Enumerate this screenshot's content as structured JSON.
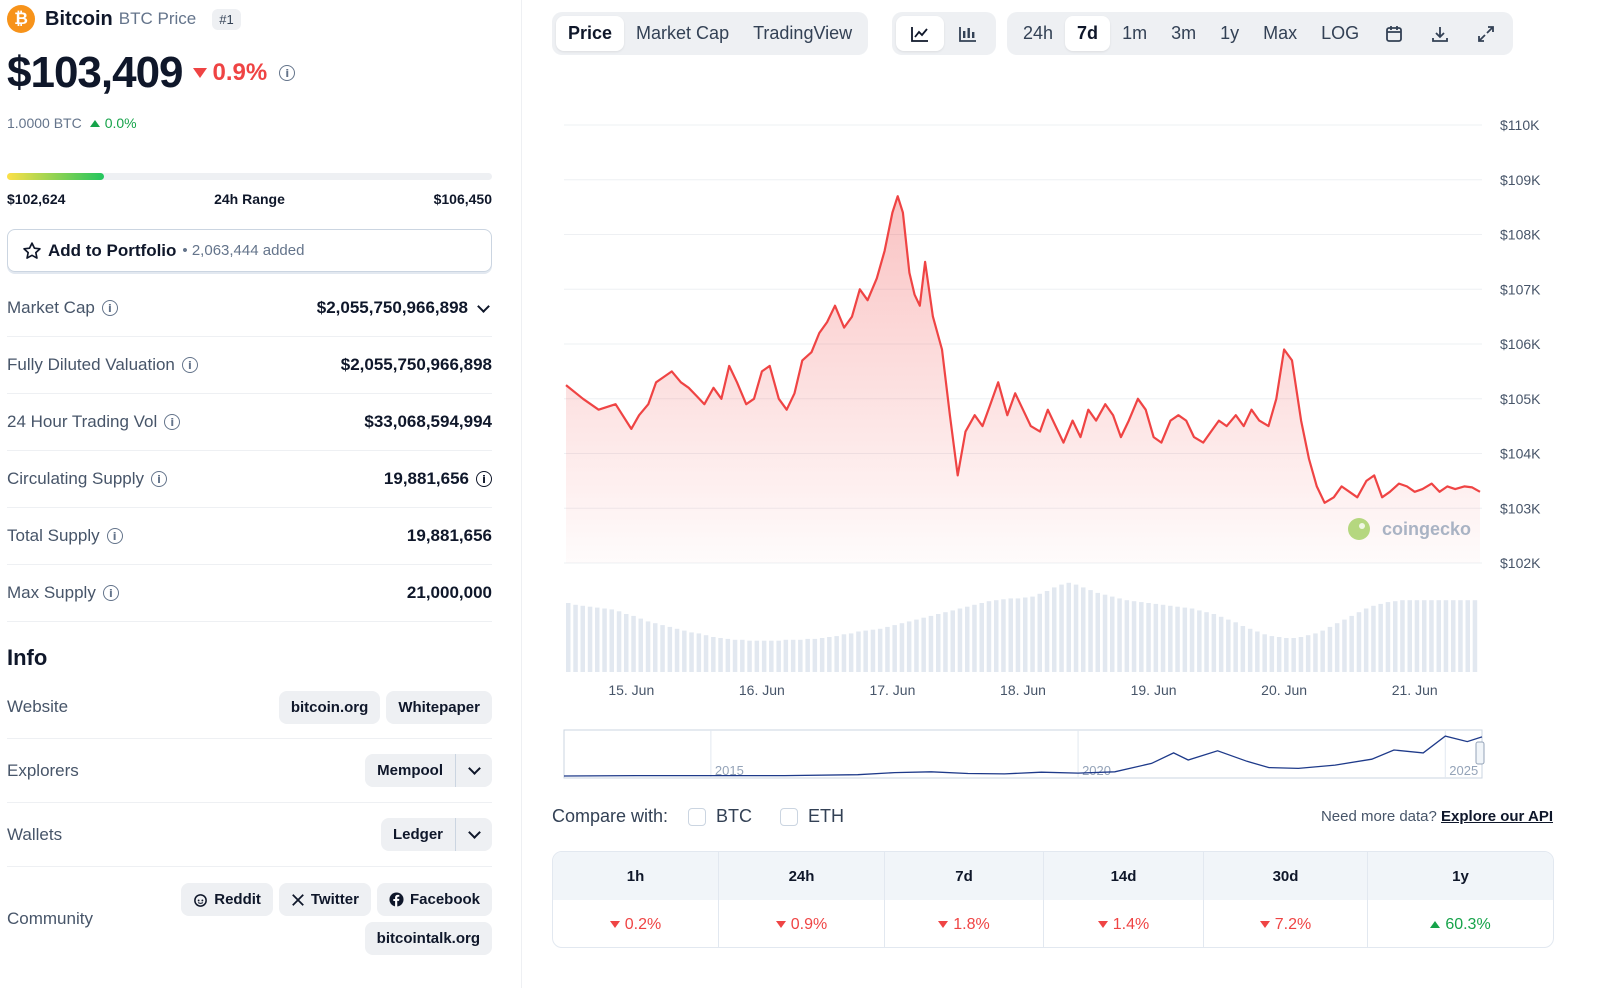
{
  "coin": {
    "logo_glyph": "₿",
    "name": "Bitcoin",
    "subtitle": "BTC Price",
    "rank": "#1",
    "price": "$103,409",
    "change": "0.9%",
    "btc_value": "1.0000 BTC",
    "btc_change": "0.0%"
  },
  "range": {
    "low": "$102,624",
    "label": "24h Range",
    "high": "$106,450",
    "fill_fraction": 0.2
  },
  "portfolio": {
    "label": "Add to Portfolio",
    "count": "• 2,063,444 added"
  },
  "stats": [
    {
      "key": "Market Cap",
      "value": "$2,055,750,966,898"
    },
    {
      "key": "Fully Diluted Valuation",
      "value": "$2,055,750,966,898"
    },
    {
      "key": "24 Hour Trading Vol",
      "value": "$33,068,594,994"
    },
    {
      "key": "Circulating Supply",
      "value": "19,881,656"
    },
    {
      "key": "Total Supply",
      "value": "19,881,656"
    },
    {
      "key": "Max Supply",
      "value": "21,000,000"
    }
  ],
  "info": {
    "title": "Info",
    "website_label": "Website",
    "website_links": [
      "bitcoin.org",
      "Whitepaper"
    ],
    "explorers_label": "Explorers",
    "explorer": "Mempool",
    "wallets_label": "Wallets",
    "wallet": "Ledger",
    "community_label": "Community",
    "community_links": [
      "Reddit",
      "Twitter",
      "Facebook",
      "bitcointalk.org"
    ]
  },
  "chart_tabs": [
    "Price",
    "Market Cap",
    "TradingView"
  ],
  "chart_tab_active": "Price",
  "time_tabs": [
    "24h",
    "7d",
    "1m",
    "3m",
    "1y",
    "Max",
    "LOG"
  ],
  "time_tab_active": "7d",
  "icons": [
    "line-chart-icon",
    "candlestick-icon",
    "calendar-icon",
    "download-icon",
    "expand-icon",
    "star-icon",
    "info-icon",
    "chevron-down-icon",
    "reddit-icon",
    "x-twitter-icon",
    "facebook-icon"
  ],
  "colors": {
    "accent": "#ef4444",
    "up": "#16a34a",
    "btc": "#f7931a"
  },
  "watermark": "coingecko",
  "compare": {
    "label": "Compare with:",
    "options": [
      "BTC",
      "ETH"
    ]
  },
  "api": {
    "text": "Need more data?",
    "link": "Explore our API"
  },
  "performance": {
    "periods": [
      "1h",
      "24h",
      "7d",
      "14d",
      "30d",
      "1y"
    ],
    "values": [
      {
        "dir": "down",
        "value": "0.2%"
      },
      {
        "dir": "down",
        "value": "0.9%"
      },
      {
        "dir": "down",
        "value": "1.8%"
      },
      {
        "dir": "down",
        "value": "1.4%"
      },
      {
        "dir": "down",
        "value": "7.2%"
      },
      {
        "dir": "up",
        "value": "60.3%"
      }
    ]
  },
  "chart_data": {
    "type": "area",
    "title": "",
    "xlabel": "",
    "ylabel": "",
    "y_tick_labels": [
      "$110K",
      "$109K",
      "$108K",
      "$107K",
      "$106K",
      "$105K",
      "$104K",
      "$103K",
      "$102K"
    ],
    "y_ticks": [
      110000,
      109000,
      108000,
      107000,
      106000,
      105000,
      104000,
      103000,
      102000
    ],
    "ylim": [
      102000,
      110000
    ],
    "x_tick_labels": [
      "15. Jun",
      "16. Jun",
      "17. Jun",
      "18. Jun",
      "19. Jun",
      "20. Jun",
      "21. Jun"
    ],
    "x_ticks": [
      0.5,
      1.5,
      2.5,
      3.5,
      4.5,
      5.5,
      6.5
    ],
    "xlim": [
      0,
      7
    ],
    "series": [
      {
        "x": [
          0,
          0.13,
          0.25,
          0.38,
          0.5,
          0.56,
          0.63,
          0.69,
          0.75,
          0.81,
          0.88,
          0.94,
          1.0,
          1.06,
          1.13,
          1.19,
          1.25,
          1.31,
          1.38,
          1.44,
          1.5,
          1.56,
          1.63,
          1.69,
          1.75,
          1.81,
          1.88,
          1.94,
          2.0,
          2.06,
          2.13,
          2.19,
          2.25,
          2.31,
          2.38,
          2.44,
          2.5,
          2.54,
          2.58,
          2.63,
          2.67,
          2.71,
          2.75,
          2.81,
          2.88,
          2.94,
          3.0,
          3.06,
          3.13,
          3.19,
          3.25,
          3.31,
          3.38,
          3.44,
          3.5,
          3.56,
          3.63,
          3.69,
          3.75,
          3.81,
          3.88,
          3.94,
          4.0,
          4.06,
          4.13,
          4.19,
          4.25,
          4.31,
          4.38,
          4.44,
          4.5,
          4.56,
          4.63,
          4.69,
          4.75,
          4.81,
          4.88,
          4.94,
          5.0,
          5.06,
          5.13,
          5.19,
          5.25,
          5.31,
          5.38,
          5.44,
          5.5,
          5.56,
          5.63,
          5.69,
          5.75,
          5.81,
          5.88,
          5.94,
          6.0,
          6.06,
          6.13,
          6.19,
          6.25,
          6.31,
          6.38,
          6.44,
          6.5,
          6.56,
          6.63,
          6.69,
          6.75,
          6.81,
          6.88,
          6.94,
          7.0
        ],
        "y": [
          105250,
          105000,
          104800,
          104900,
          104450,
          104700,
          104900,
          105300,
          105400,
          105500,
          105300,
          105200,
          105050,
          104900,
          105200,
          105000,
          105600,
          105300,
          104900,
          105000,
          105500,
          105600,
          105000,
          104800,
          105100,
          105700,
          105850,
          106200,
          106400,
          106700,
          106300,
          106500,
          107000,
          106800,
          107200,
          107700,
          108400,
          108700,
          108400,
          107300,
          106900,
          106700,
          107500,
          106500,
          105900,
          104700,
          103600,
          104400,
          104700,
          104500,
          104900,
          105300,
          104700,
          105100,
          104800,
          104500,
          104400,
          104800,
          104500,
          104200,
          104600,
          104300,
          104800,
          104600,
          104900,
          104700,
          104300,
          104600,
          105000,
          104800,
          104300,
          104200,
          104600,
          104700,
          104600,
          104300,
          104200,
          104400,
          104600,
          104500,
          104700,
          104500,
          104800,
          104600,
          104500,
          105000,
          105900,
          105700,
          104600,
          103900,
          103400,
          103100,
          103200,
          103400,
          103300,
          103200,
          103500,
          103600,
          103200,
          103300,
          103450,
          103400,
          103300,
          103350,
          103450,
          103300,
          103400,
          103350,
          103400,
          103380,
          103300
        ]
      }
    ],
    "volume_relative": [
      0.75,
      0.73,
      0.72,
      0.71,
      0.7,
      0.69,
      0.68,
      0.66,
      0.63,
      0.61,
      0.58,
      0.55,
      0.53,
      0.51,
      0.49,
      0.47,
      0.45,
      0.43,
      0.42,
      0.4,
      0.38,
      0.37,
      0.36,
      0.35,
      0.35,
      0.34,
      0.34,
      0.34,
      0.34,
      0.34,
      0.35,
      0.35,
      0.35,
      0.36,
      0.36,
      0.37,
      0.38,
      0.39,
      0.41,
      0.42,
      0.44,
      0.45,
      0.46,
      0.47,
      0.49,
      0.51,
      0.53,
      0.55,
      0.57,
      0.59,
      0.61,
      0.63,
      0.65,
      0.67,
      0.69,
      0.71,
      0.73,
      0.75,
      0.77,
      0.78,
      0.79,
      0.8,
      0.8,
      0.81,
      0.82,
      0.85,
      0.88,
      0.92,
      0.95,
      0.97,
      0.95,
      0.92,
      0.89,
      0.86,
      0.84,
      0.82,
      0.8,
      0.78,
      0.77,
      0.76,
      0.75,
      0.74,
      0.73,
      0.72,
      0.71,
      0.7,
      0.69,
      0.67,
      0.65,
      0.63,
      0.6,
      0.57,
      0.54,
      0.5,
      0.47,
      0.44,
      0.41,
      0.39,
      0.38,
      0.37,
      0.37,
      0.38,
      0.4,
      0.42,
      0.45,
      0.49,
      0.53,
      0.57,
      0.61,
      0.65,
      0.69,
      0.72,
      0.74,
      0.76,
      0.77,
      0.78,
      0.78,
      0.78,
      0.78,
      0.78,
      0.78,
      0.78,
      0.78,
      0.78,
      0.78,
      0.78
    ],
    "navigator": {
      "x_tick_labels": [
        "2015",
        "2020",
        "2025"
      ],
      "x": [
        2013,
        2014,
        2015,
        2016,
        2017,
        2017.5,
        2018,
        2018.5,
        2019,
        2019.5,
        2020,
        2020.5,
        2021,
        2021.3,
        2021.5,
        2021.9,
        2022.3,
        2022.6,
        2023,
        2023.5,
        2024,
        2024.3,
        2024.7,
        2025,
        2025.3,
        2025.5
      ],
      "y_relative": [
        0.0,
        0.01,
        0.01,
        0.01,
        0.03,
        0.08,
        0.1,
        0.06,
        0.05,
        0.09,
        0.07,
        0.1,
        0.3,
        0.55,
        0.38,
        0.6,
        0.35,
        0.2,
        0.18,
        0.26,
        0.4,
        0.62,
        0.55,
        0.95,
        0.82,
        0.93
      ]
    }
  }
}
